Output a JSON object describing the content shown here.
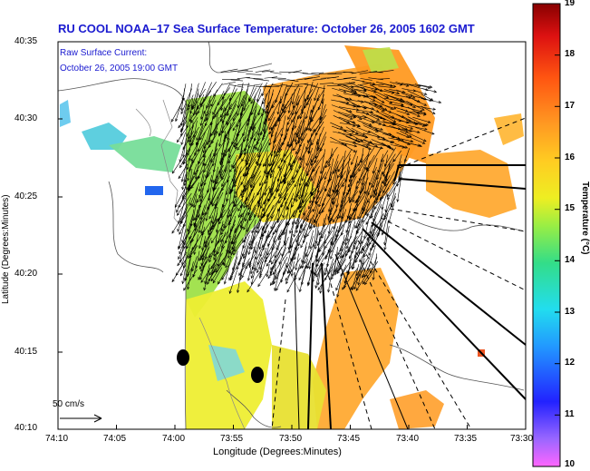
{
  "title": "RU COOL  NOAA–17  Sea Surface Temperature:  October 26, 2005 1602 GMT",
  "annotation": {
    "line1": "Raw Surface Current:",
    "line2": "October 26, 2005 19:00 GMT"
  },
  "axes": {
    "xlabel": "Longitude (Degrees:Minutes)",
    "ylabel": "Latitude (Degrees:Minutes)",
    "xticks": [
      "74:10",
      "74:05",
      "74:00",
      "73:55",
      "73:50",
      "73:45",
      "73:40",
      "73:35",
      "73:30"
    ],
    "yticks": [
      "40:35",
      "40:30",
      "40:25",
      "40:20",
      "40:15",
      "40:10"
    ]
  },
  "colorbar": {
    "title": "Temperature (°C)",
    "ticks": [
      "19",
      "18",
      "17",
      "16",
      "15",
      "14",
      "13",
      "12",
      "11",
      "10"
    ],
    "min": 10,
    "max": 19
  },
  "scale_arrow": {
    "label": "50 cm/s"
  },
  "colors": {
    "title_text": "#1a1ad0",
    "vectors": "#000000",
    "coastline": "#555555",
    "land_gray": "#7a7a7a"
  }
}
